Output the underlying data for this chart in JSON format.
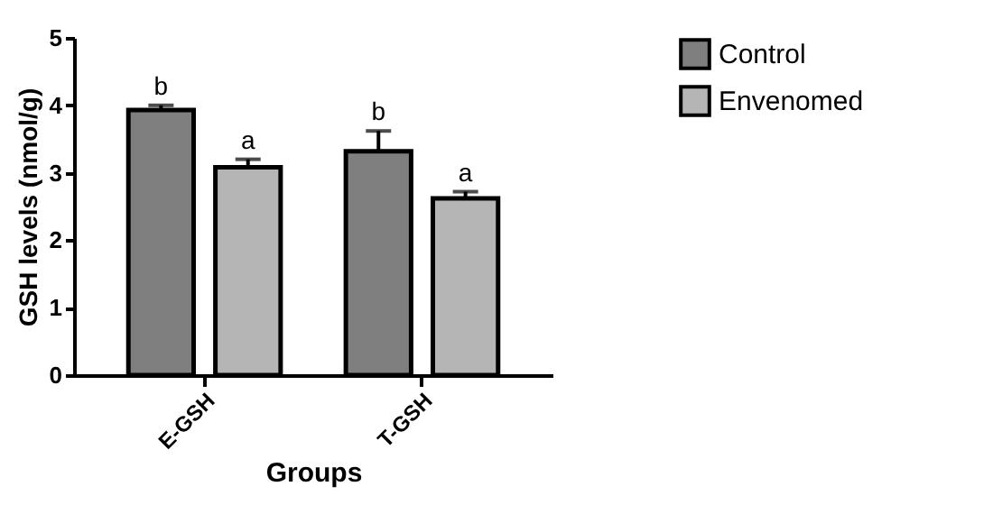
{
  "chart_data": {
    "type": "bar",
    "xlabel": "Groups",
    "ylabel": "GSH levels (nmol/g)",
    "categories": [
      "E-GSH",
      "T-GSH"
    ],
    "series": [
      {
        "name": "Control",
        "color": "#7f7f7f",
        "values": [
          3.93,
          3.32
        ],
        "errors": [
          [
            3.93,
            4.0
          ],
          [
            3.32,
            3.62
          ]
        ]
      },
      {
        "name": "Envenomed",
        "color": "#b5b5b5",
        "values": [
          3.08,
          2.62
        ],
        "errors": [
          [
            3.08,
            3.2
          ],
          [
            2.62,
            2.72
          ]
        ]
      }
    ],
    "ylim": [
      0,
      5
    ],
    "yticks": [
      0,
      1,
      2,
      3,
      4,
      5
    ],
    "grid": false,
    "legend": "top right",
    "annotations": [
      "b",
      "a",
      "b",
      "a"
    ]
  }
}
